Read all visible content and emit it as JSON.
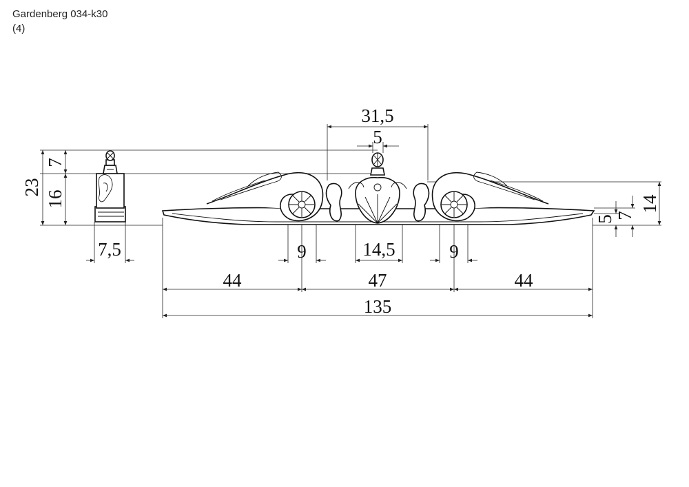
{
  "header": {
    "title": "Gardenberg 034-k30",
    "subtitle": "(4)"
  },
  "dimensions": {
    "top_width": "31,5",
    "finial_width": "5",
    "side_height_total": "23",
    "side_height_finial": "7",
    "side_height_body": "16",
    "side_depth": "7,5",
    "rosette_left": "9",
    "center_shell": "14,5",
    "rosette_right": "9",
    "segment_left": "44",
    "segment_center": "47",
    "segment_right": "44",
    "total_length": "135",
    "right_height_total": "14",
    "right_height_mid": "7",
    "right_height_base": "5"
  }
}
